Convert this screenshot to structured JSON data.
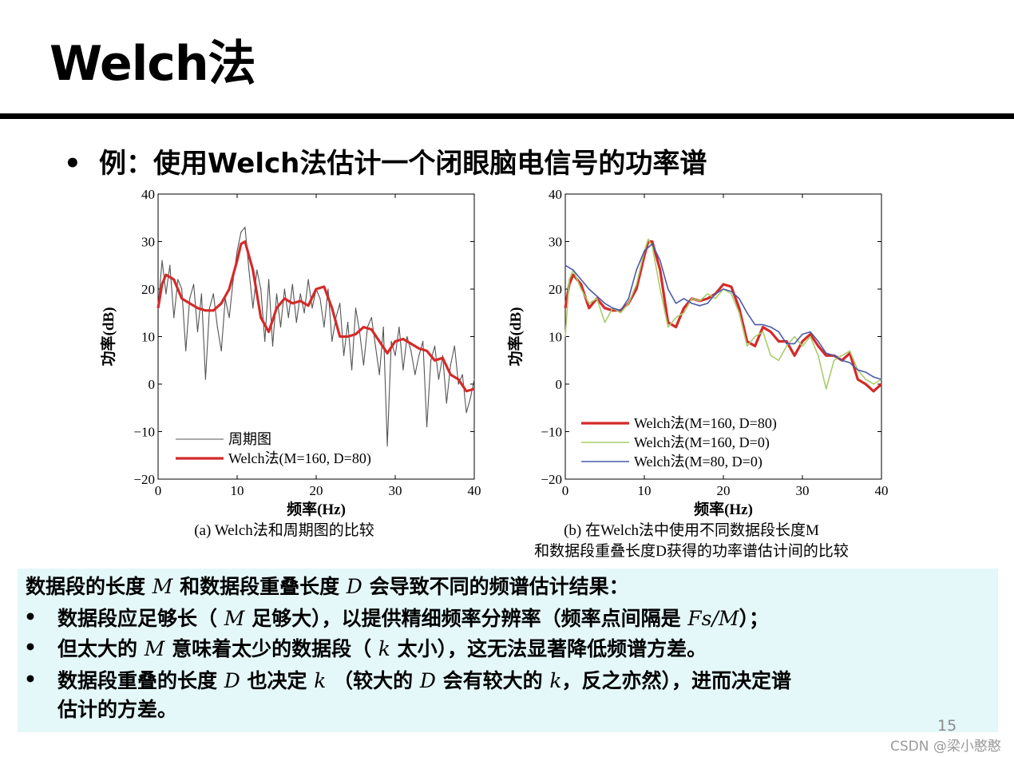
{
  "slide": {
    "title": "Welch法",
    "bullet": "例：使用Welch法估计一个闭眼脑电信号的功率谱",
    "page_number": "15",
    "watermark": "CSDN @梁小憨憨"
  },
  "notes": {
    "intro_a": "数据段的长度",
    "intro_m": "M",
    "intro_b": "和数据段重叠长度",
    "intro_d": "D",
    "intro_c": "会导致不同的频谱估计结果：",
    "b1_a": "数据段应足够长（",
    "b1_m": "M",
    "b1_b": "足够大），以提供精细频率分辨率（频率点间隔是",
    "b1_f": "Fs/M",
    "b1_c": "）；",
    "b2_a": "但太大的",
    "b2_m": "M",
    "b2_b": "意味着太少的数据段（",
    "b2_k": "k",
    "b2_c": "太小），这无法显著降低频谱方差。",
    "b3_a": "数据段重叠的长度",
    "b3_d": "D",
    "b3_b": "也决定",
    "b3_k": "k",
    "b3_c": "（较大的",
    "b3_d2": "D",
    "b3_e": "会有较大的",
    "b3_k2": "k",
    "b3_f": "，反之亦然），进而决定谱",
    "b3_g": "估计的方差。",
    "bullet_symbol": "•"
  },
  "chart_data": [
    {
      "type": "line",
      "caption": "(a) Welch法和周期图的比较",
      "xlabel": "频率(Hz)",
      "ylabel": "功率(dB)",
      "xlim": [
        0,
        40
      ],
      "ylim": [
        -20,
        40
      ],
      "xticks": [
        "0",
        "10",
        "20",
        "30",
        "40"
      ],
      "yticks": [
        "−20",
        "−10",
        "0",
        "10",
        "20",
        "30",
        "40"
      ],
      "legend_position": "bottom-left",
      "series": [
        {
          "name": "周期图",
          "color": "#555555",
          "x": [
            0,
            0.5,
            1,
            1.5,
            2,
            2.5,
            3,
            3.5,
            4,
            4.5,
            5,
            5.5,
            6,
            6.5,
            7,
            7.5,
            8,
            8.5,
            9,
            9.5,
            10,
            10.5,
            11,
            11.5,
            12,
            12.5,
            13,
            13.5,
            14,
            14.5,
            15,
            15.5,
            16,
            16.5,
            17,
            17.5,
            18,
            18.5,
            19,
            19.5,
            20,
            20.5,
            21,
            21.5,
            22,
            22.5,
            23,
            23.5,
            24,
            24.5,
            25,
            25.5,
            26,
            26.5,
            27,
            27.5,
            28,
            28.5,
            29,
            29.5,
            30,
            30.5,
            31,
            31.5,
            32,
            32.5,
            33,
            33.5,
            34,
            34.5,
            35,
            35.5,
            36,
            36.5,
            37,
            37.5,
            38,
            38.5,
            39,
            39.5,
            40
          ],
          "y": [
            16,
            26,
            19,
            25,
            14,
            22,
            20,
            7,
            18,
            21,
            11,
            19,
            1,
            16,
            19,
            12,
            7,
            18,
            14,
            22,
            28,
            32,
            33,
            24,
            16,
            24,
            20,
            9,
            22,
            8,
            19,
            12,
            20,
            14,
            21,
            13,
            19,
            15,
            22,
            16,
            20,
            18,
            12,
            20,
            9,
            14,
            17,
            6,
            13,
            3,
            16,
            11,
            4,
            12,
            14,
            8,
            2,
            12,
            -13,
            9,
            6,
            12,
            3,
            10,
            7,
            2,
            6,
            9,
            -9,
            5,
            8,
            1,
            6,
            -4,
            4,
            8,
            0,
            2,
            -6,
            -3,
            1
          ]
        },
        {
          "name": "Welch法(M=160, D=80)",
          "color": "#d42a2a",
          "x": [
            0,
            0.5,
            1,
            2,
            3,
            4,
            5,
            6,
            7,
            8,
            9,
            10,
            10.5,
            11,
            12,
            13,
            14,
            15,
            16,
            17,
            18,
            19,
            20,
            21,
            22,
            23,
            24,
            25,
            26,
            27,
            28,
            29,
            30,
            31,
            32,
            33,
            34,
            35,
            36,
            37,
            38,
            39,
            40
          ],
          "y": [
            16,
            21,
            23,
            22,
            18,
            17,
            16,
            15.5,
            15.5,
            17,
            20,
            26,
            29.5,
            30,
            24,
            14,
            11,
            16,
            18,
            17,
            17.5,
            16.5,
            20,
            20.5,
            16,
            10,
            10,
            10.5,
            12,
            11.5,
            9,
            6.5,
            9,
            9.5,
            8.5,
            7.5,
            7,
            5,
            5.5,
            2,
            1,
            -1.5,
            -1
          ]
        }
      ]
    },
    {
      "type": "line",
      "caption_line1": "(b) 在Welch法中使用不同数据段长度M",
      "caption_line2": "和数据段重叠长度D获得的功率谱估计间的比较",
      "xlabel": "频率(Hz)",
      "ylabel": "功率(dB)",
      "xlim": [
        0,
        40
      ],
      "ylim": [
        -20,
        40
      ],
      "xticks": [
        "0",
        "10",
        "20",
        "30",
        "40"
      ],
      "yticks": [
        "−20",
        "−10",
        "0",
        "10",
        "20",
        "30",
        "40"
      ],
      "legend_position": "bottom-right",
      "series": [
        {
          "name": "Welch法(M=160, D=80)",
          "color": "#d42a2a",
          "x": [
            0,
            0.5,
            1,
            2,
            3,
            4,
            5,
            6,
            7,
            8,
            9,
            10,
            10.5,
            11,
            12,
            13,
            14,
            15,
            16,
            17,
            18,
            19,
            20,
            21,
            22,
            23,
            24,
            25,
            26,
            27,
            28,
            29,
            30,
            31,
            32,
            33,
            34,
            35,
            36,
            37,
            38,
            39,
            40
          ],
          "y": [
            16,
            21,
            23,
            21,
            16,
            18,
            16,
            15.5,
            15.5,
            17,
            20,
            27,
            30,
            30,
            24,
            13,
            12,
            16,
            18,
            17.5,
            18,
            19,
            21,
            20.5,
            16,
            9,
            8,
            12,
            11,
            9,
            9,
            6,
            9,
            10.5,
            8,
            6,
            6,
            5,
            6.5,
            1,
            0,
            -1.5,
            0
          ]
        },
        {
          "name": "Welch法(M=160, D=0)",
          "color": "#a8cc6a",
          "x": [
            0,
            0.5,
            1,
            2,
            3,
            4,
            5,
            6,
            7,
            8,
            9,
            10,
            10.5,
            11,
            12,
            13,
            14,
            15,
            16,
            17,
            18,
            19,
            20,
            21,
            22,
            23,
            24,
            25,
            26,
            27,
            28,
            29,
            30,
            31,
            32,
            33,
            34,
            35,
            36,
            37,
            38,
            39,
            40
          ],
          "y": [
            10,
            22,
            24,
            20,
            17,
            18,
            13,
            16,
            15,
            17,
            21,
            28,
            30.5,
            29,
            20,
            12,
            14,
            15,
            18,
            17.5,
            19,
            18,
            20,
            19,
            15,
            8,
            10,
            11,
            6,
            5,
            8,
            10,
            8,
            10,
            6,
            -1,
            5,
            6,
            7,
            3,
            1,
            0,
            1
          ]
        },
        {
          "name": "Welch法(M=80, D=0)",
          "color": "#4a5aa8",
          "x": [
            0,
            1,
            2,
            3,
            4,
            5,
            6,
            7,
            8,
            9,
            10,
            11,
            12,
            13,
            14,
            15,
            16,
            17,
            18,
            19,
            20,
            21,
            22,
            23,
            24,
            25,
            26,
            27,
            28,
            29,
            30,
            31,
            32,
            33,
            34,
            35,
            36,
            37,
            38,
            39,
            40
          ],
          "y": [
            25,
            24,
            22,
            20,
            18.5,
            17,
            16,
            15.5,
            18,
            24,
            28,
            29.5,
            26,
            20,
            17,
            18,
            17,
            16.5,
            17,
            19,
            20,
            19.5,
            18,
            15,
            12.5,
            12.5,
            12,
            11,
            8.5,
            8.5,
            10.5,
            11,
            9,
            6.5,
            6,
            5,
            4.5,
            3,
            2.5,
            1.5,
            1
          ]
        }
      ]
    }
  ]
}
